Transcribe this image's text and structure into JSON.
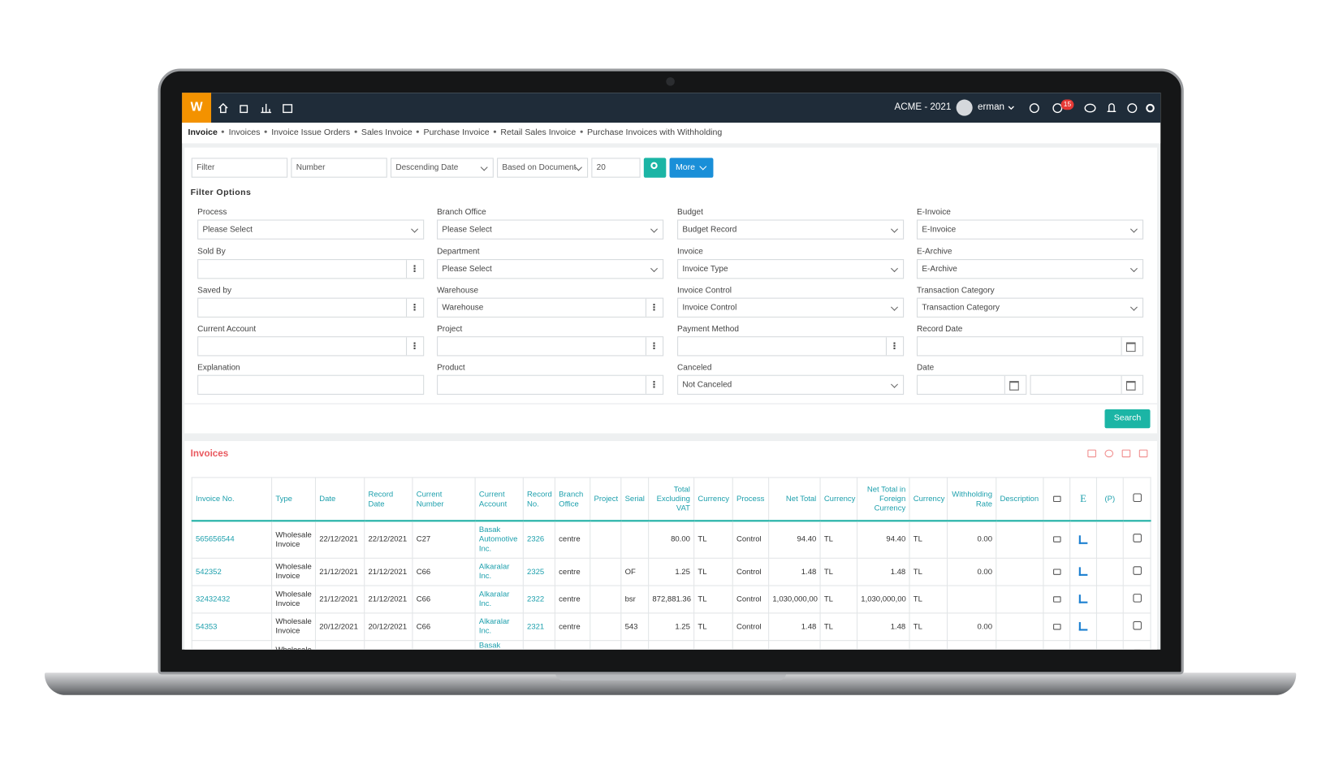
{
  "topbar": {
    "logo": "W",
    "company": "ACME - 2021",
    "user": "erman",
    "badge": "15"
  },
  "breadcrumb": [
    "Invoice",
    "Invoices",
    "Invoice Issue Orders",
    "Sales Invoice",
    "Purchase Invoice",
    "Retail Sales Invoice",
    "Purchase Invoices with Withholding"
  ],
  "toolbar": {
    "filter": "Filter",
    "number": "Number",
    "sort": "Descending Date",
    "basis": "Based on Document",
    "count": "20",
    "more": "More"
  },
  "filter_options": {
    "title": "Filter Options",
    "search": "Search",
    "fields": [
      {
        "label": "Process",
        "value": "Please Select",
        "kind": "select"
      },
      {
        "label": "Branch Office",
        "value": "Please Select",
        "kind": "select"
      },
      {
        "label": "Budget",
        "value": "Budget Record",
        "kind": "select"
      },
      {
        "label": "E-Invoice",
        "value": "E-Invoice",
        "kind": "select"
      },
      {
        "label": "Sold By",
        "kind": "menu"
      },
      {
        "label": "Department",
        "value": "Please Select",
        "kind": "select"
      },
      {
        "label": "Invoice",
        "value": "Invoice Type",
        "kind": "select"
      },
      {
        "label": "E-Archive",
        "value": "E-Archive",
        "kind": "select"
      },
      {
        "label": "Saved by",
        "kind": "menu"
      },
      {
        "label": "Warehouse",
        "value": "Warehouse",
        "kind": "menu"
      },
      {
        "label": "Invoice Control",
        "value": "Invoice Control",
        "kind": "select"
      },
      {
        "label": "Transaction Category",
        "value": "Transaction Category",
        "kind": "select"
      },
      {
        "label": "Current Account",
        "kind": "menu"
      },
      {
        "label": "Project",
        "kind": "menu"
      },
      {
        "label": "Payment Method",
        "kind": "menu"
      },
      {
        "label": "Record Date",
        "kind": "date"
      },
      {
        "label": "Explanation",
        "kind": "text"
      },
      {
        "label": "Product",
        "kind": "menu"
      },
      {
        "label": "Canceled",
        "value": "Not Canceled",
        "kind": "select"
      },
      {
        "label": "Date",
        "kind": "daterange"
      }
    ]
  },
  "invoices": {
    "title": "Invoices",
    "columns": [
      "Invoice No.",
      "Type",
      "Date",
      "Record Date",
      "Current Number",
      "Current Account",
      "Record No.",
      "Branch Office",
      "Project",
      "Serial",
      "Total Excluding VAT",
      "Currency",
      "Process",
      "Net Total",
      "Currency",
      "Net Total in Foreign Currency",
      "Currency",
      "Withholding Rate",
      "Description"
    ],
    "icon_columns": [
      "E",
      "(P)"
    ],
    "rows": [
      [
        "565656544",
        "Wholesale Invoice",
        "22/12/2021",
        "22/12/2021",
        "C27",
        "Basak Automotive Inc.",
        "2326",
        "centre",
        null,
        null,
        "80.00",
        "TL",
        "Control",
        "94.40",
        "TL",
        "94.40",
        "TL",
        "0.00",
        null
      ],
      [
        "542352",
        "Wholesale Invoice",
        "21/12/2021",
        "21/12/2021",
        "C66",
        "Alkaralar Inc.",
        "2325",
        "centre",
        null,
        "OF",
        "1.25",
        "TL",
        "Control",
        "1.48",
        "TL",
        "1.48",
        "TL",
        "0.00",
        null
      ],
      [
        "32432432",
        "Wholesale Invoice",
        "21/12/2021",
        "21/12/2021",
        "C66",
        "Alkaralar Inc.",
        "2322",
        "centre",
        null,
        "bsr",
        "872,881.36",
        "TL",
        "Control",
        "1,030,000,00",
        "TL",
        "1,030,000,00",
        "TL",
        null,
        null
      ],
      [
        "54353",
        "Wholesale Invoice",
        "20/12/2021",
        "20/12/2021",
        "C66",
        "Alkaralar Inc.",
        "2321",
        "centre",
        null,
        "543",
        "1.25",
        "TL",
        "Control",
        "1.48",
        "TL",
        "1.48",
        "TL",
        "0.00",
        null
      ],
      [
        null,
        "Wholesale Invoice",
        null,
        null,
        null,
        "Basak Automotive Inc.",
        null,
        null,
        null,
        null,
        null,
        null,
        null,
        null,
        null,
        null,
        null,
        null,
        null
      ]
    ]
  }
}
